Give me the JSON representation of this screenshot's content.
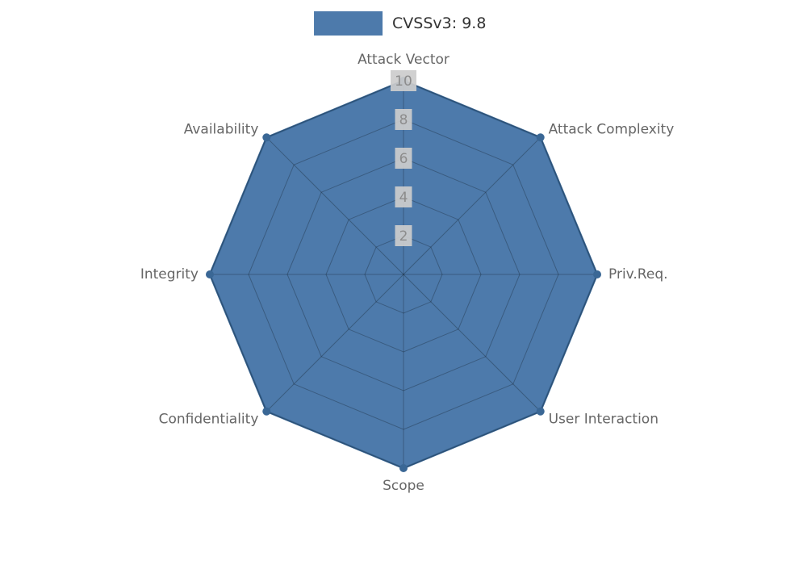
{
  "legend": {
    "label": "CVSSv3: 9.8",
    "swatch_color": "#4d7aab"
  },
  "chart_data": {
    "type": "radar",
    "title": "CVSSv3: 9.8",
    "categories": [
      "Attack Vector",
      "Attack Complexity",
      "Priv.Req.",
      "User Interaction",
      "Scope",
      "Confidentiality",
      "Integrity",
      "Availability"
    ],
    "series": [
      {
        "name": "CVSSv3: 9.8",
        "values": [
          10,
          10,
          10,
          10,
          10,
          10,
          10,
          10
        ]
      }
    ],
    "ticks": [
      2,
      4,
      6,
      8,
      10
    ],
    "rlim": [
      0,
      10
    ],
    "grid": true,
    "legend_position": "top-center",
    "colors": {
      "fill": "#4d7aab",
      "line": "#3a6795",
      "marker": "#3a6795",
      "grid": "rgba(0,0,0,0.25)",
      "axis_label": "#666666",
      "tick_label": "#8c8c8c",
      "tick_box": "#cccccc",
      "legend_text": "#333333"
    }
  }
}
